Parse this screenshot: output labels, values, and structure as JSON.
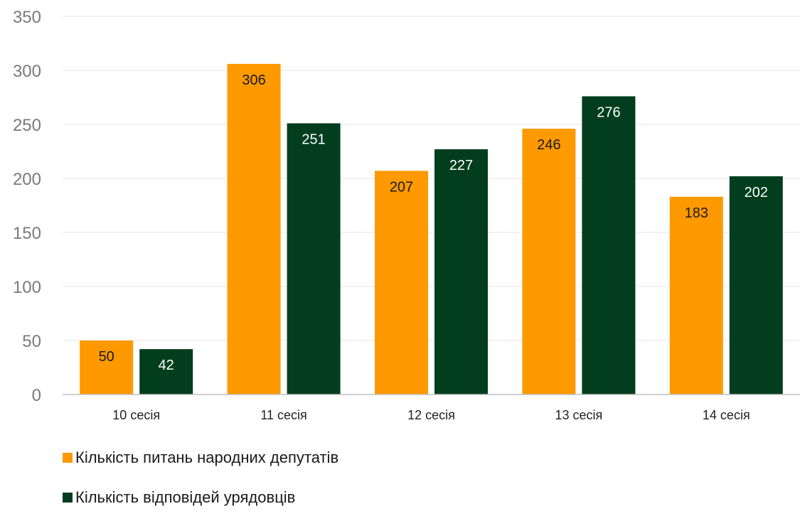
{
  "chart_data": {
    "type": "bar",
    "title": "",
    "xlabel": "",
    "ylabel": "",
    "categories": [
      "10 сесія",
      "11 сесія",
      "12 сесія",
      "13 сесія",
      "14 сесія"
    ],
    "series": [
      {
        "name": "Кількість питань народних депутатів",
        "values": [
          50,
          306,
          207,
          246,
          183
        ],
        "color": "#ff9900"
      },
      {
        "name": "Кількість відповідей урядовців",
        "values": [
          42,
          251,
          227,
          276,
          202
        ],
        "color": "#023e1e"
      }
    ],
    "ylim": [
      0,
      350
    ],
    "yticks": [
      0,
      50,
      100,
      150,
      200,
      250,
      300,
      350
    ],
    "grid": true,
    "legend_position": "bottom-left",
    "data_labels": true
  },
  "colors": {
    "orange_label_text": "#1a1a1a",
    "green_label_text": "#ffffff",
    "gridline": "#e6e6e6",
    "axis": "#bfbfbf"
  }
}
